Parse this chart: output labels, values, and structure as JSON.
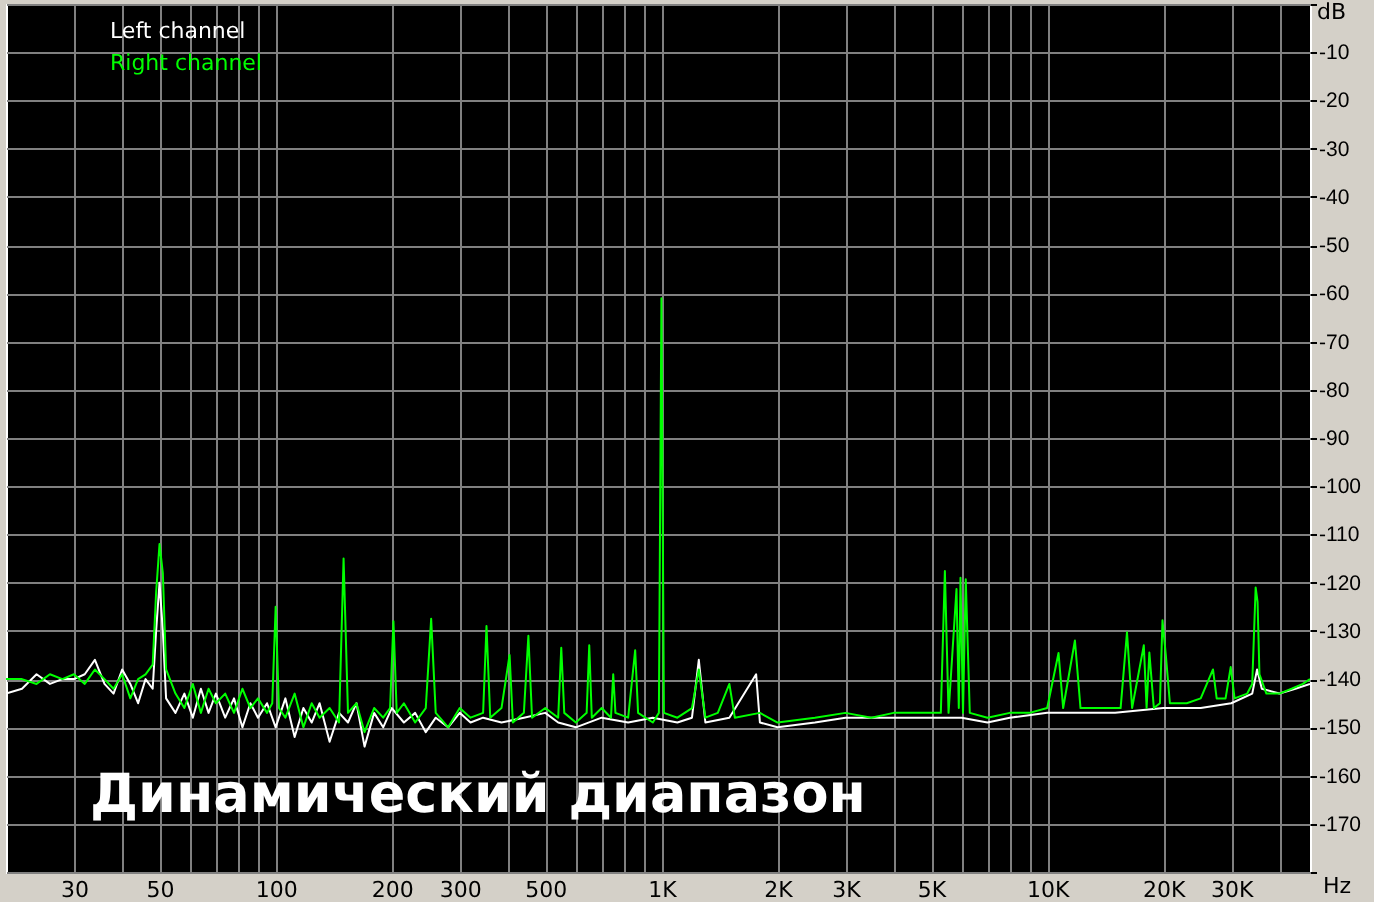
{
  "chart_data": {
    "type": "line",
    "xlabel": "Hz",
    "ylabel": "dB",
    "log": "x",
    "grid": true,
    "legend": "top left",
    "line_style": "solid",
    "xlim": [
      20,
      48000
    ],
    "ylim": [
      -180,
      0
    ],
    "xticks": [
      {
        "value": 30,
        "label": "30"
      },
      {
        "value": 40,
        "label": null
      },
      {
        "value": 50,
        "label": "50"
      },
      {
        "value": 60,
        "label": null
      },
      {
        "value": 70,
        "label": null
      },
      {
        "value": 80,
        "label": null
      },
      {
        "value": 90,
        "label": null
      },
      {
        "value": 100,
        "label": "100"
      },
      {
        "value": 200,
        "label": "200"
      },
      {
        "value": 300,
        "label": "300"
      },
      {
        "value": 400,
        "label": null
      },
      {
        "value": 500,
        "label": "500"
      },
      {
        "value": 600,
        "label": null
      },
      {
        "value": 700,
        "label": null
      },
      {
        "value": 800,
        "label": null
      },
      {
        "value": 900,
        "label": null
      },
      {
        "value": 1000,
        "label": "1K"
      },
      {
        "value": 2000,
        "label": "2K"
      },
      {
        "value": 3000,
        "label": "3K"
      },
      {
        "value": 4000,
        "label": null
      },
      {
        "value": 5000,
        "label": "5K"
      },
      {
        "value": 6000,
        "label": null
      },
      {
        "value": 7000,
        "label": null
      },
      {
        "value": 8000,
        "label": null
      },
      {
        "value": 9000,
        "label": null
      },
      {
        "value": 10000,
        "label": "10K"
      },
      {
        "value": 20000,
        "label": "20K"
      },
      {
        "value": 30000,
        "label": "30K"
      },
      {
        "value": 40000,
        "label": null
      }
    ],
    "yticks": [
      {
        "value": 0,
        "label": null
      },
      -10,
      -20,
      -30,
      -40,
      -50,
      -60,
      -70,
      -80,
      -90,
      -100,
      -110,
      -120,
      -130,
      -140,
      -150,
      -160,
      -170,
      {
        "value": -180,
        "label": null
      }
    ],
    "annotations": [
      "Динамический диапазон"
    ],
    "series": [
      {
        "name": "Left channel",
        "color": "#ffffff",
        "x": [
          20,
          22,
          24,
          26,
          28,
          30,
          32,
          34,
          36,
          38,
          40,
          42,
          44,
          46,
          48,
          49,
          50,
          51,
          52,
          55,
          58,
          61,
          64,
          67,
          70,
          74,
          78,
          82,
          86,
          90,
          95,
          100,
          106,
          112,
          118,
          124,
          130,
          138,
          146,
          154,
          162,
          170,
          180,
          190,
          200,
          215,
          230,
          245,
          260,
          280,
          300,
          320,
          345,
          385,
          440,
          500,
          540,
          600,
          700,
          820,
          950,
          1100,
          1200,
          1250,
          1300,
          1500,
          1760,
          1800,
          2000,
          2500,
          3000,
          4000,
          5000,
          6000,
          7000,
          8000,
          10000,
          12000,
          15000,
          20000,
          25000,
          30000,
          34000,
          35000,
          36000,
          40000,
          44000,
          48000
        ],
        "values": [
          -143,
          -142,
          -139,
          -141,
          -140,
          -140,
          -139,
          -136,
          -141,
          -143,
          -138,
          -141,
          -145,
          -140,
          -142,
          -130,
          -120,
          -130,
          -144,
          -147,
          -143,
          -148,
          -142,
          -147,
          -143,
          -148,
          -144,
          -150,
          -145,
          -148,
          -145,
          -150,
          -144,
          -152,
          -146,
          -149,
          -145,
          -153,
          -147,
          -149,
          -145,
          -154,
          -147,
          -150,
          -146,
          -149,
          -147,
          -151,
          -148,
          -150,
          -147,
          -149,
          -148,
          -149,
          -148,
          -147,
          -149,
          -150,
          -148,
          -149,
          -148,
          -149,
          -148,
          -136,
          -149,
          -148,
          -139,
          -149,
          -150,
          -149,
          -148,
          -148,
          -148,
          -148,
          -149,
          -148,
          -147,
          -147,
          -147,
          -146,
          -146,
          -145,
          -143,
          -138,
          -142,
          -143,
          -142,
          -141
        ]
      },
      {
        "name": "Right channel",
        "color": "#00ff00",
        "x": [
          20,
          22,
          24,
          26,
          28,
          30,
          32,
          34,
          36,
          38,
          40,
          42,
          44,
          46,
          48,
          49,
          50,
          51,
          52,
          55,
          58,
          61,
          64,
          67,
          70,
          74,
          78,
          82,
          86,
          90,
          95,
          98,
          100,
          102,
          106,
          112,
          118,
          124,
          130,
          138,
          146,
          150,
          154,
          162,
          170,
          180,
          190,
          198,
          202,
          206,
          215,
          230,
          245,
          253,
          260,
          280,
          300,
          320,
          345,
          352,
          360,
          385,
          404,
          412,
          440,
          452,
          462,
          500,
          540,
          550,
          560,
          600,
          640,
          650,
          660,
          700,
          740,
          750,
          760,
          820,
          855,
          870,
          950,
          985,
          1000,
          1015,
          1100,
          1200,
          1250,
          1300,
          1400,
          1500,
          1550,
          1800,
          2000,
          2500,
          3000,
          3500,
          4000,
          4600,
          5300,
          5430,
          5550,
          5820,
          5900,
          5960,
          6050,
          6150,
          6300,
          7000,
          8000,
          9000,
          10000,
          10700,
          11000,
          11800,
          12200,
          14000,
          15500,
          16100,
          16600,
          17800,
          18100,
          18400,
          18900,
          19600,
          19900,
          20300,
          20800,
          23000,
          25000,
          26900,
          27500,
          29000,
          29900,
          30600,
          33000,
          34000,
          34700,
          35100,
          35500,
          37000,
          40000,
          43000,
          46000,
          48000
        ],
        "values": [
          -140,
          -140,
          -141,
          -139,
          -140,
          -139,
          -141,
          -138,
          -140,
          -142,
          -139,
          -144,
          -140,
          -139,
          -137,
          -122,
          -112,
          -118,
          -138,
          -143,
          -146,
          -141,
          -147,
          -142,
          -145,
          -143,
          -147,
          -142,
          -146,
          -144,
          -147,
          -145,
          -125,
          -146,
          -148,
          -143,
          -150,
          -145,
          -148,
          -146,
          -149,
          -115,
          -147,
          -145,
          -151,
          -146,
          -148,
          -146,
          -128,
          -147,
          -145,
          -149,
          -146,
          -127.5,
          -147,
          -150,
          -146,
          -148,
          -147,
          -129,
          -148,
          -146,
          -135,
          -149,
          -147,
          -131,
          -148,
          -146,
          -148,
          -133.5,
          -147,
          -149,
          -147,
          -133,
          -148,
          -146,
          -148,
          -139,
          -147,
          -148,
          -134,
          -147,
          -149,
          -147,
          -61,
          -147,
          -148,
          -146,
          -138,
          -148,
          -147,
          -141,
          -148,
          -147,
          -149,
          -148,
          -147,
          -148,
          -147,
          -147,
          -147,
          -117.6,
          -147,
          -121.3,
          -146,
          -119,
          -147,
          -119.3,
          -147,
          -148,
          -147,
          -147,
          -146,
          -134.6,
          -146,
          -132,
          -146,
          -146,
          -146,
          -130.3,
          -146,
          -133,
          -146,
          -134.5,
          -146,
          -145,
          -127.8,
          -135,
          -145,
          -145,
          -144,
          -138,
          -144,
          -144,
          -137.5,
          -144,
          -143,
          -141,
          -121,
          -124,
          -139,
          -143,
          -143,
          -142,
          -141,
          -140
        ]
      }
    ]
  }
}
